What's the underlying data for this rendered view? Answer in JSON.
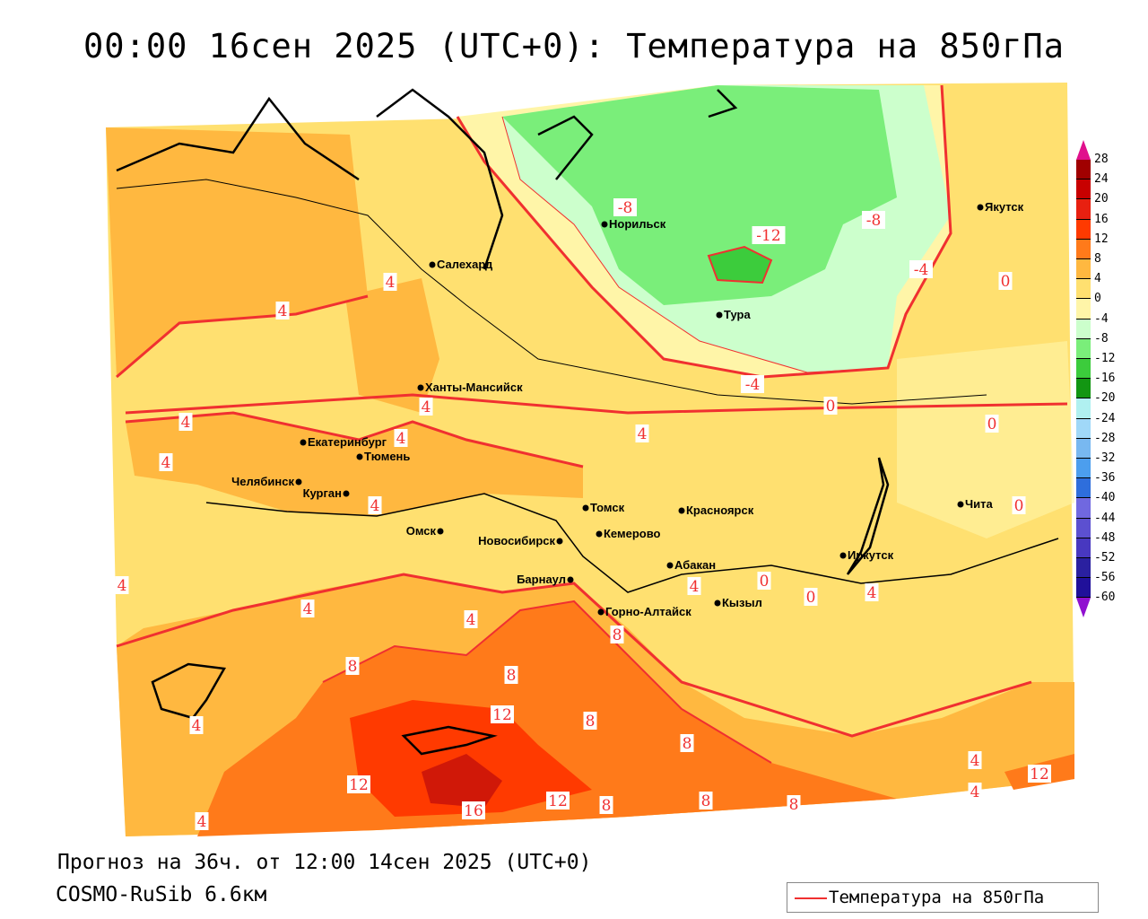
{
  "title": "00:00 16сен 2025 (UTC+0): Температура на 850гПа",
  "footer": {
    "forecast": "Прогноз на 36ч. от 12:00 14сен 2025 (UTC+0)",
    "model": "COSMO-RuSib 6.6км"
  },
  "legend": {
    "label": "Температура на 850гПа",
    "line_color": "#f03030"
  },
  "colorbar": {
    "ticks": [
      "28",
      "24",
      "20",
      "16",
      "12",
      "8",
      "4",
      "0",
      "-4",
      "-8",
      "-12",
      "-16",
      "-20",
      "-24",
      "-28",
      "-32",
      "-36",
      "-40",
      "-44",
      "-48",
      "-52",
      "-56",
      "-60"
    ],
    "colors": [
      "#a00000",
      "#c80000",
      "#e82010",
      "#ff3a00",
      "#ff7a1a",
      "#ffb840",
      "#ffe070",
      "#fff5a8",
      "#ccffcc",
      "#7aee7a",
      "#3ccc3c",
      "#129612",
      "#b0f0f0",
      "#a0d8f8",
      "#78b8f0",
      "#4c9eee",
      "#2e6edc",
      "#7068e0",
      "#5c50d0",
      "#4838c0",
      "#2a20a0",
      "#20109a"
    ],
    "over_color": "#e0108c",
    "under_color": "#9010d0"
  },
  "cities": [
    "Норильск",
    "Якутск",
    "Салехард",
    "Тура",
    "Ханты-Мансийск",
    "Екатеринбург",
    "Тюмень",
    "Челябинск",
    "Курган",
    "Омск",
    "Новосибирск",
    "Томск",
    "Кемерово",
    "Красноярск",
    "Барнаул",
    "Абакан",
    "Горно-Алтайск",
    "Кызыл",
    "Иркутск",
    "Чита"
  ],
  "contour_labels": [
    "-8",
    "-12",
    "-8",
    "-4",
    "-4",
    "0",
    "0",
    "0",
    "0",
    "4",
    "4",
    "4",
    "4",
    "4",
    "4",
    "4",
    "4",
    "4",
    "4",
    "4",
    "4",
    "4",
    "8",
    "8",
    "8",
    "8",
    "8",
    "8",
    "8",
    "12",
    "12",
    "12",
    "16",
    "12",
    "4",
    "4",
    "0",
    "0",
    "4",
    "8",
    "4"
  ]
}
